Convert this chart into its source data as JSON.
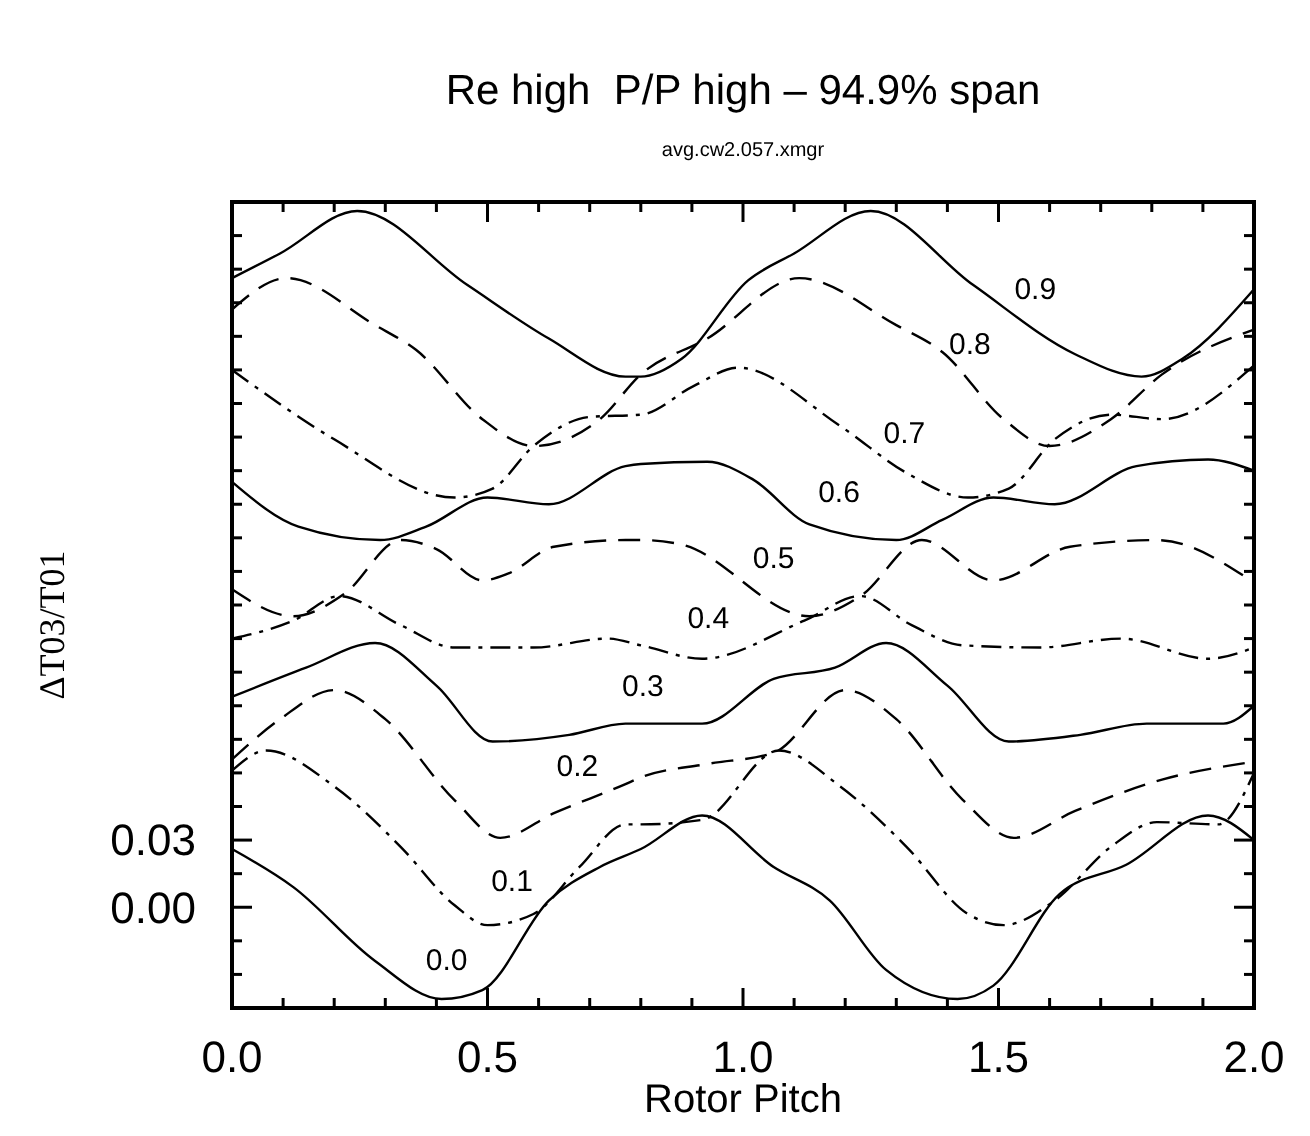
{
  "chart_data": {
    "type": "line",
    "title": "Re high  P/P high – 94.9% span",
    "subtitle": "avg.cw2.057.xmgr",
    "xlabel": "Rotor Pitch",
    "ylabel": "ΔT03/T01",
    "xlim": [
      0,
      2
    ],
    "ylim": [
      -0.045,
      0.315
    ],
    "xticks": [
      {
        "value": 0,
        "label": "0.0"
      },
      {
        "value": 0.1,
        "label": null
      },
      {
        "value": 0.2,
        "label": null
      },
      {
        "value": 0.3,
        "label": null
      },
      {
        "value": 0.4,
        "label": null
      },
      {
        "value": 0.5,
        "label": "0.5"
      },
      {
        "value": 0.6,
        "label": null
      },
      {
        "value": 0.7,
        "label": null
      },
      {
        "value": 0.8,
        "label": null
      },
      {
        "value": 0.9,
        "label": null
      },
      {
        "value": 1,
        "label": "1.0"
      },
      {
        "value": 1.1,
        "label": null
      },
      {
        "value": 1.2,
        "label": null
      },
      {
        "value": 1.3,
        "label": null
      },
      {
        "value": 1.4,
        "label": null
      },
      {
        "value": 1.5,
        "label": "1.5"
      },
      {
        "value": 1.6,
        "label": null
      },
      {
        "value": 1.7,
        "label": null
      },
      {
        "value": 1.8,
        "label": null
      },
      {
        "value": 1.9,
        "label": null
      },
      {
        "value": 2,
        "label": "2.0"
      }
    ],
    "yticks": [
      {
        "value": -0.045,
        "label": null
      },
      {
        "value": -0.03,
        "label": null
      },
      {
        "value": -0.015,
        "label": null
      },
      {
        "value": 0,
        "label": "0.00"
      },
      {
        "value": 0.015,
        "label": null
      },
      {
        "value": 0.03,
        "label": "0.03"
      },
      {
        "value": 0.045,
        "label": null
      },
      {
        "value": 0.06,
        "label": null
      },
      {
        "value": 0.075,
        "label": null
      },
      {
        "value": 0.09,
        "label": null
      },
      {
        "value": 0.105,
        "label": null
      },
      {
        "value": 0.12,
        "label": null
      },
      {
        "value": 0.135,
        "label": null
      },
      {
        "value": 0.15,
        "label": null
      },
      {
        "value": 0.165,
        "label": null
      },
      {
        "value": 0.18,
        "label": null
      },
      {
        "value": 0.195,
        "label": null
      },
      {
        "value": 0.21,
        "label": null
      },
      {
        "value": 0.225,
        "label": null
      },
      {
        "value": 0.24,
        "label": null
      },
      {
        "value": 0.255,
        "label": null
      },
      {
        "value": 0.27,
        "label": null
      },
      {
        "value": 0.285,
        "label": null
      },
      {
        "value": 0.3,
        "label": null
      },
      {
        "value": 0.315,
        "label": null
      }
    ],
    "series": [
      {
        "name": "0.0",
        "color": "#000000",
        "line_style": "solid",
        "x": [
          0,
          0.12,
          0.28,
          0.41,
          0.49,
          0.62,
          0.72,
          0.8,
          0.92,
          1.06,
          1.17,
          1.28,
          1.42,
          1.49,
          1.62,
          1.75,
          1.91,
          2.0
        ],
        "values": [
          0.026,
          0.009,
          -0.024,
          -0.041,
          -0.037,
          0.003,
          0.018,
          0.026,
          0.041,
          0.018,
          0.003,
          -0.028,
          -0.041,
          -0.035,
          0.006,
          0.019,
          0.041,
          0.03
        ]
      },
      {
        "name": "0.1",
        "color": "#000000",
        "line_style": "dashdot",
        "x": [
          0,
          0.067,
          0.2,
          0.33,
          0.435,
          0.5,
          0.59,
          0.68,
          0.77,
          0.8,
          0.92,
          1.07,
          1.19,
          1.32,
          1.44,
          1.51,
          1.61,
          1.72,
          1.81,
          1.93,
          2.0
        ],
        "values": [
          0.061,
          0.07,
          0.054,
          0.027,
          0.001,
          -0.008,
          -0.003,
          0.018,
          0.037,
          0.037,
          0.039,
          0.07,
          0.054,
          0.027,
          -0.003,
          -0.008,
          0.003,
          0.027,
          0.038,
          0.037,
          0.06
        ]
      },
      {
        "name": "0.2",
        "color": "#000000",
        "line_style": "dashed",
        "x": [
          0,
          0.094,
          0.2,
          0.3,
          0.435,
          0.525,
          0.63,
          0.77,
          0.8,
          0.93,
          1.06,
          1.2,
          1.3,
          1.43,
          1.53,
          1.65,
          1.82,
          2.0
        ],
        "values": [
          0.066,
          0.084,
          0.097,
          0.084,
          0.048,
          0.031,
          0.042,
          0.055,
          0.058,
          0.064,
          0.069,
          0.097,
          0.084,
          0.048,
          0.031,
          0.043,
          0.057,
          0.065
        ]
      },
      {
        "name": "0.3",
        "color": "#000000",
        "line_style": "solid",
        "x": [
          0,
          0.145,
          0.28,
          0.4,
          0.51,
          0.66,
          0.77,
          0.8,
          0.92,
          1.06,
          1.18,
          1.28,
          1.4,
          1.52,
          1.66,
          1.79,
          1.94,
          2.0
        ],
        "values": [
          0.094,
          0.107,
          0.118,
          0.099,
          0.074,
          0.077,
          0.082,
          0.082,
          0.082,
          0.102,
          0.107,
          0.118,
          0.099,
          0.074,
          0.077,
          0.082,
          0.082,
          0.09
        ]
      },
      {
        "name": "0.4",
        "color": "#000000",
        "line_style": "dashdot",
        "x": [
          0,
          0.12,
          0.21,
          0.33,
          0.435,
          0.59,
          0.735,
          0.8,
          0.92,
          1.12,
          1.23,
          1.33,
          1.43,
          1.58,
          1.74,
          1.91,
          2.0
        ],
        "values": [
          0.12,
          0.128,
          0.139,
          0.126,
          0.116,
          0.116,
          0.12,
          0.117,
          0.111,
          0.128,
          0.139,
          0.126,
          0.117,
          0.116,
          0.12,
          0.111,
          0.116
        ]
      },
      {
        "name": "0.5",
        "color": "#000000",
        "line_style": "dashed",
        "x": [
          0,
          0.12,
          0.22,
          0.33,
          0.4,
          0.49,
          0.54,
          0.63,
          0.77,
          0.8,
          0.88,
          1.13,
          1.23,
          1.35,
          1.49,
          1.64,
          1.81,
          2.0
        ],
        "values": [
          0.142,
          0.13,
          0.14,
          0.164,
          0.16,
          0.146,
          0.149,
          0.161,
          0.164,
          0.164,
          0.162,
          0.13,
          0.139,
          0.164,
          0.146,
          0.161,
          0.164,
          0.145
        ]
      },
      {
        "name": "0.6",
        "color": "#000000",
        "line_style": "solid",
        "x": [
          0,
          0.13,
          0.29,
          0.38,
          0.5,
          0.62,
          0.77,
          0.8,
          0.93,
          1.02,
          1.13,
          1.3,
          1.39,
          1.49,
          1.61,
          1.77,
          1.91,
          2.0
        ],
        "values": [
          0.19,
          0.17,
          0.164,
          0.17,
          0.183,
          0.18,
          0.197,
          0.198,
          0.199,
          0.191,
          0.171,
          0.164,
          0.173,
          0.183,
          0.18,
          0.197,
          0.2,
          0.195
        ]
      },
      {
        "name": "0.7",
        "color": "#000000",
        "line_style": "dashdot",
        "x": [
          0,
          0.2,
          0.435,
          0.51,
          0.59,
          0.7,
          0.8,
          0.905,
          0.99,
          1.19,
          1.32,
          1.44,
          1.52,
          1.61,
          1.72,
          1.82,
          2.0
        ],
        "values": [
          0.24,
          0.209,
          0.183,
          0.187,
          0.206,
          0.219,
          0.22,
          0.233,
          0.241,
          0.215,
          0.194,
          0.183,
          0.187,
          0.209,
          0.22,
          0.218,
          0.242
        ]
      },
      {
        "name": "0.8",
        "color": "#000000",
        "line_style": "dashed",
        "x": [
          0,
          0.107,
          0.28,
          0.36,
          0.49,
          0.59,
          0.72,
          0.8,
          0.93,
          1.11,
          1.3,
          1.39,
          1.51,
          1.6,
          1.72,
          1.82,
          2.0
        ],
        "values": [
          0.267,
          0.281,
          0.26,
          0.249,
          0.218,
          0.206,
          0.218,
          0.238,
          0.254,
          0.281,
          0.26,
          0.248,
          0.218,
          0.206,
          0.218,
          0.238,
          0.258
        ]
      },
      {
        "name": "0.9",
        "color": "#000000",
        "line_style": "solid",
        "x": [
          0,
          0.094,
          0.245,
          0.46,
          0.62,
          0.77,
          0.8,
          0.88,
          1.01,
          1.1,
          1.25,
          1.45,
          1.65,
          1.78,
          1.86,
          2.0
        ],
        "values": [
          0.281,
          0.292,
          0.311,
          0.278,
          0.254,
          0.237,
          0.237,
          0.245,
          0.28,
          0.292,
          0.311,
          0.278,
          0.247,
          0.237,
          0.245,
          0.276
        ]
      }
    ]
  }
}
